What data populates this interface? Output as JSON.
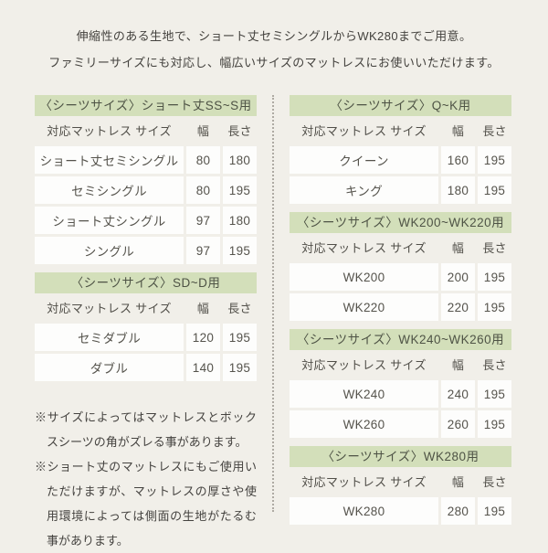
{
  "colors": {
    "background": "#f1efe9",
    "accent_green": "#d3dfba",
    "cell_white": "#fdfdfc",
    "text": "#454340"
  },
  "intro": {
    "line1": "伸縮性のある生地で、ショート丈セミシングルからWK280までご用意。",
    "line2": "ファミリーサイズにも対応し、幅広いサイズのマットレスにお使いいただけます。"
  },
  "columns_header": {
    "mattress": "対応マットレス サイズ",
    "width": "幅",
    "length": "長さ"
  },
  "tables": [
    {
      "title": "〈シーツサイズ〉ショート丈SS~S用",
      "rows": [
        {
          "name": "ショート丈セミシングル",
          "width": "80",
          "length": "180"
        },
        {
          "name": "セミシングル",
          "width": "80",
          "length": "195"
        },
        {
          "name": "ショート丈シングル",
          "width": "97",
          "length": "180"
        },
        {
          "name": "シングル",
          "width": "97",
          "length": "195"
        }
      ]
    },
    {
      "title": "〈シーツサイズ〉SD~D用",
      "rows": [
        {
          "name": "セミダブル",
          "width": "120",
          "length": "195"
        },
        {
          "name": "ダブル",
          "width": "140",
          "length": "195"
        }
      ]
    },
    {
      "title": "〈シーツサイズ〉Q~K用",
      "rows": [
        {
          "name": "クイーン",
          "width": "160",
          "length": "195"
        },
        {
          "name": "キング",
          "width": "180",
          "length": "195"
        }
      ]
    },
    {
      "title": "〈シーツサイズ〉WK200~WK220用",
      "rows": [
        {
          "name": "WK200",
          "width": "200",
          "length": "195"
        },
        {
          "name": "WK220",
          "width": "220",
          "length": "195"
        }
      ]
    },
    {
      "title": "〈シーツサイズ〉WK240~WK260用",
      "rows": [
        {
          "name": "WK240",
          "width": "240",
          "length": "195"
        },
        {
          "name": "WK260",
          "width": "260",
          "length": "195"
        }
      ]
    },
    {
      "title": "〈シーツサイズ〉WK280用",
      "rows": [
        {
          "name": "WK280",
          "width": "280",
          "length": "195"
        }
      ]
    }
  ],
  "notes": [
    "※サイズによってはマットレスとボックスシーツの角がズレる事があります。",
    "※ショート丈のマットレスにもご使用いただけますが、マットレスの厚さや使用環境によっては側面の生地がたるむ事があります。"
  ]
}
